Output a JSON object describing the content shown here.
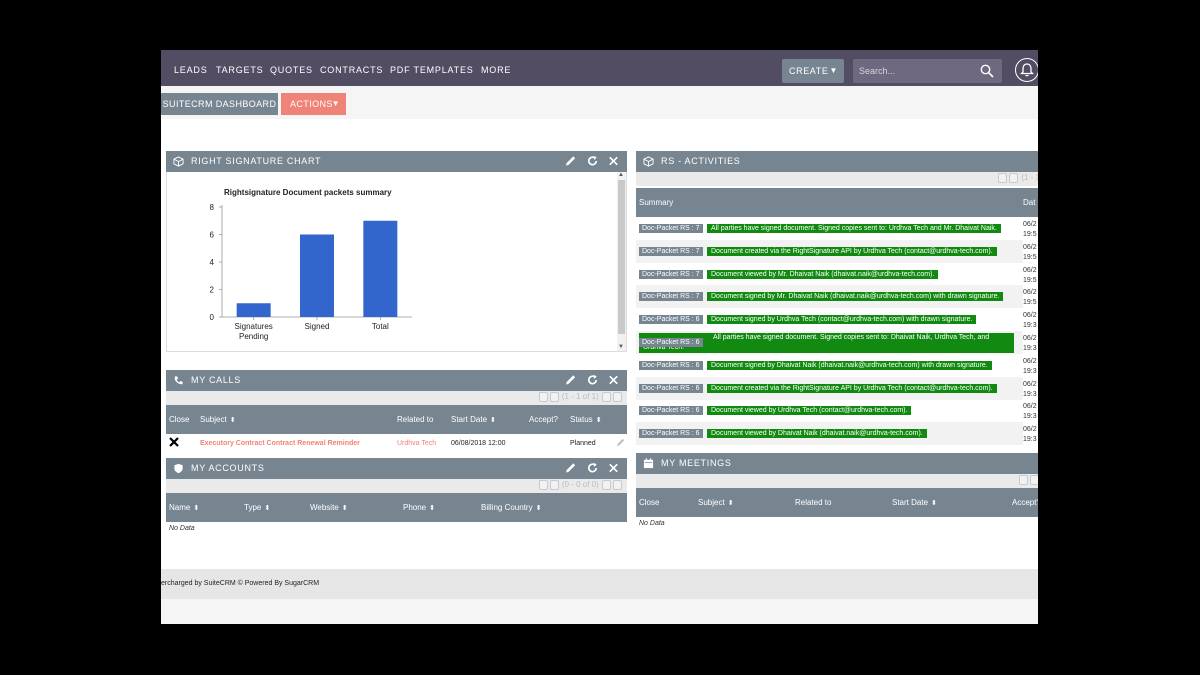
{
  "nav": {
    "items": [
      "LEADS",
      "TARGETS",
      "QUOTES",
      "CONTRACTS",
      "PDF TEMPLATES",
      "MORE"
    ],
    "create_label": "CREATE",
    "search_placeholder": "Search..."
  },
  "subbar": {
    "dashboard_label": "SUITECRM DASHBOARD",
    "actions_label": "ACTIONS"
  },
  "chart_dashlet": {
    "title": "RIGHT SIGNATURE CHART"
  },
  "chart_data": {
    "type": "bar",
    "title": "Rightsignature Document packets summary",
    "categories": [
      "Signatures Pending",
      "Signed",
      "Total"
    ],
    "category_lines": [
      [
        "Signatures",
        "Pending"
      ],
      [
        "Signed"
      ],
      [
        "Total"
      ]
    ],
    "values": [
      1,
      6,
      7
    ],
    "ylim": [
      0,
      8
    ],
    "yticks": [
      0,
      2,
      4,
      6,
      8
    ],
    "xlabel": "",
    "ylabel": "",
    "grid": false,
    "bar_color": "#3366cc"
  },
  "activities": {
    "title": "RS - ACTIVITIES",
    "pager": "(1 - 1",
    "col_summary": "Summary",
    "col_date": "Dat",
    "rows": [
      {
        "tag": "Doc-Packet RS : 7",
        "text": "All parties have signed document. Signed copies sent to: Urdhva Tech and Mr. Dhaivat Naik.",
        "date1": "06/2",
        "date2": "19:5"
      },
      {
        "tag": "Doc-Packet RS : 7",
        "text": "Document created via the RightSignature API by Urdhva Tech (contact@urdhva-tech.com).",
        "date1": "06/2",
        "date2": "19:5"
      },
      {
        "tag": "Doc-Packet RS : 7",
        "text": "Document viewed by Mr. Dhaivat Naik (dhaivat.naik@urdhva-tech.com).",
        "date1": "06/2",
        "date2": "19:5"
      },
      {
        "tag": "Doc-Packet RS : 7",
        "text": "Document signed by Mr. Dhaivat Naik (dhaivat.naik@urdhva-tech.com) with drawn signature.",
        "date1": "06/2",
        "date2": "19:5"
      },
      {
        "tag": "Doc-Packet RS : 6",
        "text": "Document signed by Urdhva Tech (contact@urdhva-tech.com) with drawn signature.",
        "date1": "06/2",
        "date2": "19:3"
      },
      {
        "tag": "Doc-Packet RS : 6",
        "text": "All parties have signed document. Signed copies sent to: Dhaivat Naik, Urdhva Tech, and Urdhva Tech.",
        "date1": "06/2",
        "date2": "19:3"
      },
      {
        "tag": "Doc-Packet RS : 6",
        "text": "Document signed by Dhaivat Naik (dhaivat.naik@urdhva-tech.com) with drawn signature.",
        "date1": "06/2",
        "date2": "19:3"
      },
      {
        "tag": "Doc-Packet RS : 6",
        "text": "Document created via the RightSignature API by Urdhva Tech (contact@urdhva-tech.com).",
        "date1": "06/2",
        "date2": "19:3"
      },
      {
        "tag": "Doc-Packet RS : 6",
        "text": "Document viewed by Urdhva Tech (contact@urdhva-tech.com).",
        "date1": "06/2",
        "date2": "19:3"
      },
      {
        "tag": "Doc-Packet RS : 6",
        "text": "Document viewed by Dhaivat Naik (dhaivat.naik@urdhva-tech.com).",
        "date1": "06/2",
        "date2": "19:3"
      }
    ]
  },
  "calls": {
    "title": "MY CALLS",
    "pager": "(1 - 1 of 1)",
    "cols": [
      "Close",
      "Subject",
      "Related to",
      "Start Date",
      "Accept?",
      "Status"
    ],
    "row": {
      "subject": "Executory Contract Contract Renewal Reminder",
      "related_to": "Urdhva Tech",
      "start_date": "06/08/2018 12:00",
      "status": "Planned"
    }
  },
  "accounts": {
    "title": "MY ACCOUNTS",
    "pager": "(0 - 0 of 0)",
    "cols": [
      "Name",
      "Type",
      "Website",
      "Phone",
      "Billing Country"
    ],
    "no_data": "No Data"
  },
  "meetings": {
    "title": "MY MEETINGS",
    "cols": [
      "Close",
      "Subject",
      "Related to",
      "Start Date",
      "Accept?"
    ],
    "no_data": "No Data"
  },
  "footer": {
    "text": "ercharged by SuiteCRM    © Powered By SugarCRM"
  },
  "colors": {
    "nav_bg": "#534d64",
    "header_bg": "#778591",
    "actions_bg": "#f08377",
    "activity_green": "#128a12",
    "link_red": "#f08377"
  }
}
